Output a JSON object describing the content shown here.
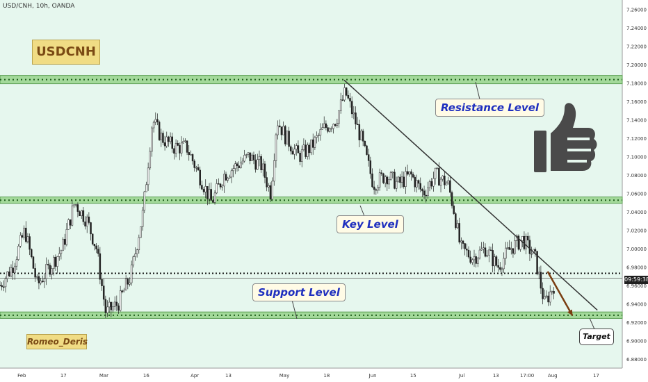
{
  "chart_data": {
    "type": "candlestick",
    "symbol_line": "USD/CNH, 10h, OANDA",
    "title_badge": "USDCNH",
    "author": "Romeo_Deris",
    "ylim": [
      6.87,
      7.27
    ],
    "y_ticks": [
      "7.26000",
      "7.24000",
      "7.22000",
      "7.20000",
      "7.18000",
      "7.16000",
      "7.14000",
      "7.12000",
      "7.10000",
      "7.08000",
      "7.06000",
      "7.04000",
      "7.02000",
      "7.00000",
      "6.98000",
      "6.96000",
      "6.94000",
      "6.92000",
      "6.90000",
      "6.88000"
    ],
    "x_ticks": [
      "Feb",
      "17",
      "Mar",
      "16",
      "Apr",
      "13",
      "May",
      "18",
      "Jun",
      "15",
      "Jul",
      "13",
      "17:00",
      "Aug",
      "17"
    ],
    "current_price_label": "09:59:38",
    "zones": [
      {
        "name": "Resistance Level",
        "low": 7.179,
        "high": 7.188
      },
      {
        "name": "Key Level",
        "low": 7.049,
        "high": 7.056
      },
      {
        "name": "Support Level",
        "low": 6.924,
        "high": 6.931
      }
    ],
    "current_price": 6.973,
    "trendline": [
      {
        "bar": 0.553,
        "price": 7.183
      },
      {
        "bar": 0.96,
        "price": 6.933
      }
    ],
    "target_arrow": [
      {
        "bar": 0.88,
        "price": 6.975
      },
      {
        "bar": 0.92,
        "price": 6.927
      }
    ],
    "annotations": [
      "Resistance Level",
      "Key Level",
      "Support Level",
      "Target"
    ],
    "closes_path": [
      [
        0.0,
        6.96
      ],
      [
        0.02,
        6.98
      ],
      [
        0.04,
        7.02
      ],
      [
        0.06,
        6.96
      ],
      [
        0.08,
        6.98
      ],
      [
        0.1,
        7.0
      ],
      [
        0.12,
        7.05
      ],
      [
        0.14,
        7.03
      ],
      [
        0.155,
        7.0
      ],
      [
        0.17,
        6.93
      ],
      [
        0.19,
        6.94
      ],
      [
        0.21,
        6.97
      ],
      [
        0.23,
        7.04
      ],
      [
        0.245,
        7.14
      ],
      [
        0.26,
        7.12
      ],
      [
        0.28,
        7.11
      ],
      [
        0.3,
        7.11
      ],
      [
        0.32,
        7.08
      ],
      [
        0.34,
        7.05
      ],
      [
        0.36,
        7.08
      ],
      [
        0.38,
        7.09
      ],
      [
        0.4,
        7.1
      ],
      [
        0.42,
        7.09
      ],
      [
        0.435,
        7.06
      ],
      [
        0.445,
        7.14
      ],
      [
        0.46,
        7.12
      ],
      [
        0.48,
        7.1
      ],
      [
        0.5,
        7.11
      ],
      [
        0.52,
        7.13
      ],
      [
        0.54,
        7.14
      ],
      [
        0.555,
        7.17
      ],
      [
        0.565,
        7.15
      ],
      [
        0.58,
        7.12
      ],
      [
        0.6,
        7.07
      ],
      [
        0.62,
        7.08
      ],
      [
        0.64,
        7.07
      ],
      [
        0.66,
        7.08
      ],
      [
        0.68,
        7.06
      ],
      [
        0.7,
        7.08
      ],
      [
        0.72,
        7.07
      ],
      [
        0.73,
        7.04
      ],
      [
        0.74,
        7.0
      ],
      [
        0.76,
        6.99
      ],
      [
        0.78,
        7.0
      ],
      [
        0.8,
        6.98
      ],
      [
        0.82,
        7.0
      ],
      [
        0.84,
        7.01
      ],
      [
        0.86,
        6.99
      ],
      [
        0.875,
        6.94
      ],
      [
        0.89,
        6.96
      ]
    ]
  }
}
